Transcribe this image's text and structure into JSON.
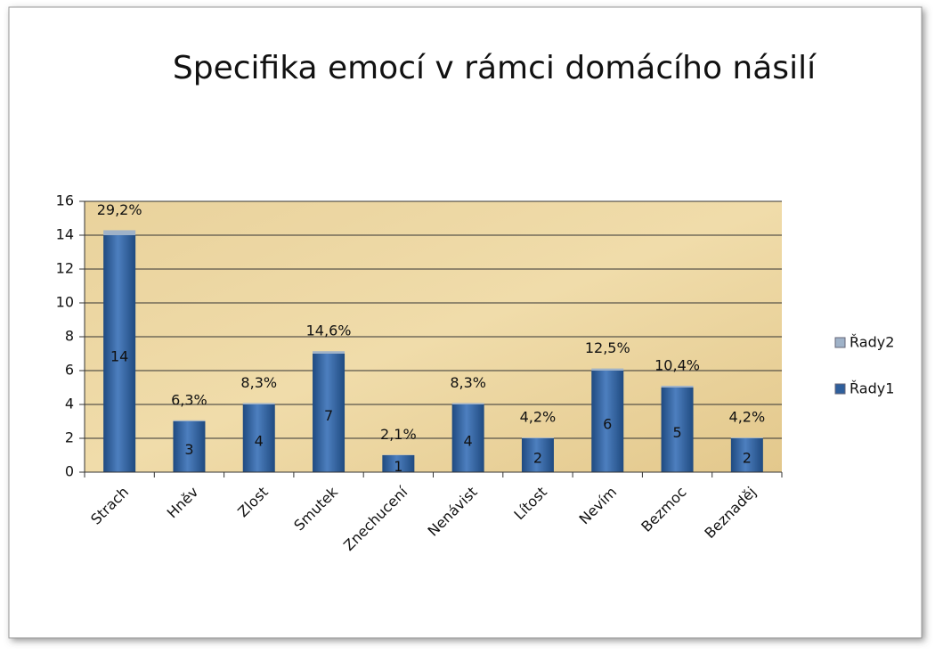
{
  "chart_data": {
    "type": "bar",
    "stacked": true,
    "title": "Specifika emocí v rámci domácího násilí",
    "categories": [
      "Strach",
      "Hněv",
      "Zlost",
      "Smutek",
      "Znechucení",
      "Nenávist",
      "Lítost",
      "Nevím",
      "Bezmoc",
      "Beznaděj"
    ],
    "series": [
      {
        "name": "Řady1",
        "color": "#2f5f9c",
        "values": [
          14,
          3,
          4,
          7,
          1,
          4,
          2,
          6,
          5,
          2
        ]
      },
      {
        "name": "Řady2",
        "color": "#9fb2c8",
        "values": [
          0.292,
          0.063,
          0.083,
          0.146,
          0.021,
          0.083,
          0.042,
          0.125,
          0.104,
          0.042
        ],
        "value_labels": [
          "29,2%",
          "6,3%",
          "8,3%",
          "14,6%",
          "2,1%",
          "8,3%",
          "4,2%",
          "12,5%",
          "10,4%",
          "4,2%"
        ]
      }
    ],
    "ylim": [
      0,
      16
    ],
    "yticks": [
      0,
      2,
      4,
      6,
      8,
      10,
      12,
      14,
      16
    ],
    "grid": true,
    "legend": "right"
  }
}
